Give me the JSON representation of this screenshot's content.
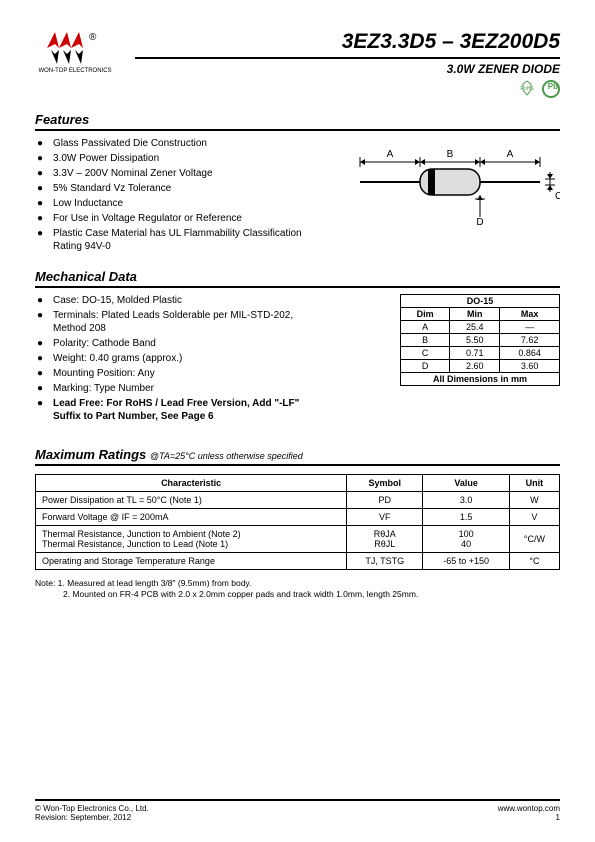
{
  "header": {
    "company": "WON-TOP ELECTRONICS",
    "part_title": "3EZ3.3D5 – 3EZ200D5",
    "subtitle": "3.0W ZENER DIODE",
    "rohs_label": "RoHS",
    "pb_label": "Pb"
  },
  "features": {
    "heading": "Features",
    "items": [
      "Glass Passivated Die Construction",
      "3.0W Power Dissipation",
      "3.3V – 200V Nominal Zener Voltage",
      "5% Standard Vz Tolerance",
      "Low Inductance",
      "For Use in Voltage Regulator or Reference",
      "Plastic Case Material has UL Flammability Classification Rating 94V-0"
    ]
  },
  "mechanical": {
    "heading": "Mechanical Data",
    "items": [
      "Case: DO-15, Molded Plastic",
      "Terminals: Plated Leads Solderable per MIL-STD-202, Method 208",
      "Polarity: Cathode Band",
      "Weight: 0.40 grams (approx.)",
      "Mounting Position: Any",
      "Marking: Type Number"
    ],
    "lead_free": "Lead Free: For RoHS / Lead Free Version, Add \"-LF\" Suffix to Part Number, See Page 6"
  },
  "package_diagram": {
    "labels": {
      "A": "A",
      "B": "B",
      "C": "C",
      "D": "D"
    }
  },
  "dim_table": {
    "title": "DO-15",
    "columns": [
      "Dim",
      "Min",
      "Max"
    ],
    "rows": [
      [
        "A",
        "25.4",
        "—"
      ],
      [
        "B",
        "5.50",
        "7.62"
      ],
      [
        "C",
        "0.71",
        "0.864"
      ],
      [
        "D",
        "2.60",
        "3.60"
      ]
    ],
    "footer": "All Dimensions in mm"
  },
  "ratings": {
    "heading": "Maximum Ratings",
    "condition": "@TA=25°C unless otherwise specified",
    "columns": [
      "Characteristic",
      "Symbol",
      "Value",
      "Unit"
    ],
    "rows": [
      {
        "char": "Power Dissipation at TL = 50°C (Note 1)",
        "symbol": "PD",
        "value": "3.0",
        "unit": "W"
      },
      {
        "char": "Forward Voltage @ IF = 200mA",
        "symbol": "VF",
        "value": "1.5",
        "unit": "V"
      },
      {
        "char": "Thermal Resistance, Junction to Ambient (Note 2)\nThermal Resistance, Junction to Lead (Note 1)",
        "symbol": "RθJA\nRθJL",
        "value": "100\n40",
        "unit": "°C/W"
      },
      {
        "char": "Operating and Storage Temperature Range",
        "symbol": "TJ, TSTG",
        "value": "-65 to +150",
        "unit": "°C"
      }
    ]
  },
  "notes": {
    "line1": "Note: 1. Measured at lead length 3/8\" (9.5mm) from body.",
    "line2": "2. Mounted on FR-4 PCB with 2.0 x 2.0mm copper pads and track width 1.0mm, length 25mm."
  },
  "footer": {
    "copyright": "© Won-Top Electronics Co., Ltd.",
    "revision": "Revision: September, 2012",
    "url": "www.wontop.com",
    "page": "1"
  }
}
